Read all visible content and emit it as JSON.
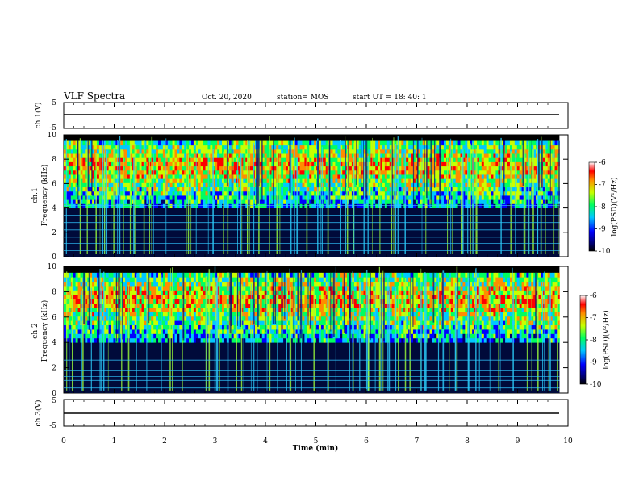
{
  "header": {
    "title": "VLF Spectra",
    "date": "Oct. 20, 2020",
    "station": "station= MOS",
    "start": "start  UT =   18: 40: 1"
  },
  "chart_data": [
    {
      "type": "line",
      "ylabel": "ch.1(V)",
      "ylim": [
        -5,
        5
      ],
      "yticks": [
        "5",
        "-5"
      ],
      "x": [
        0,
        9.83
      ],
      "values": [
        -0.5,
        -0.5
      ]
    },
    {
      "type": "heatmap",
      "ylabel_top": "ch.1",
      "ylabel": "Frequency (kHz)",
      "ylim": [
        0,
        10
      ],
      "yticks": [
        "0",
        "2",
        "4",
        "6",
        "8",
        "10"
      ],
      "xlim": [
        0,
        10
      ],
      "data_extent_min": 9.83,
      "colorbar": {
        "label": "log(PSD)(V²/Hz)",
        "range": [
          -10,
          -6
        ],
        "ticks": [
          "-6",
          "-7",
          "-8",
          "-9",
          "-10"
        ]
      },
      "dominant_band_khz": [
        4,
        9.5
      ]
    },
    {
      "type": "heatmap",
      "ylabel_top": "ch.2",
      "ylabel": "Frequency (kHz)",
      "ylim": [
        0,
        10
      ],
      "yticks": [
        "0",
        "2",
        "4",
        "6",
        "8",
        "10"
      ],
      "xlim": [
        0,
        10
      ],
      "data_extent_min": 9.83,
      "colorbar": {
        "label": "log(PSD)(V²/Hz)",
        "range": [
          -10,
          -6
        ],
        "ticks": [
          "-6",
          "-7",
          "-8",
          "-9",
          "-10"
        ]
      },
      "dominant_band_khz": [
        4,
        9.5
      ]
    },
    {
      "type": "line",
      "ylabel": "ch.3(V)",
      "ylim": [
        -5,
        5
      ],
      "yticks": [
        "5",
        "-5"
      ],
      "x": [
        0,
        9.83
      ],
      "values": [
        -0.5,
        -0.5
      ]
    }
  ],
  "xaxis": {
    "label": "Time (min)",
    "ticks": [
      "0",
      "1",
      "2",
      "3",
      "4",
      "5",
      "6",
      "7",
      "8",
      "9",
      "10"
    ]
  }
}
